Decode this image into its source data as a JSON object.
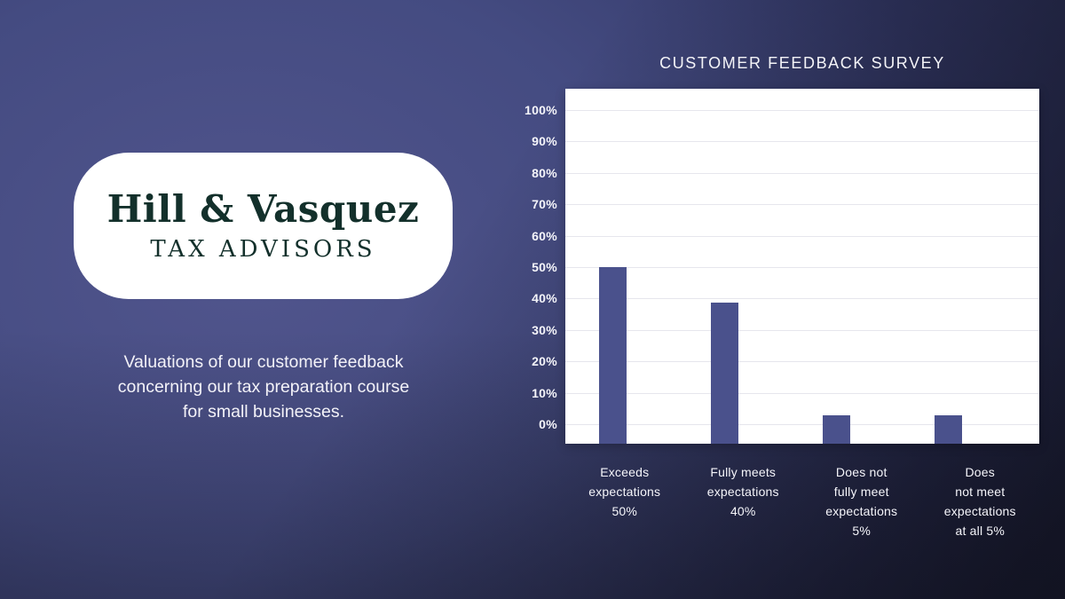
{
  "brand": {
    "name": "Hill & Vasquez",
    "subtitle": "TAX ADVISORS"
  },
  "intro": {
    "lines": [
      "Valuations of our customer feedback",
      "concerning our tax preparation course",
      "for small businesses."
    ]
  },
  "chart": {
    "title": "CUSTOMER FEEDBACK SURVEY"
  },
  "chart_data": {
    "type": "bar",
    "title": "CUSTOMER FEEDBACK SURVEY",
    "categories": [
      "Exceeds expectations",
      "Fully meets expectations",
      "Does not fully meet expectations",
      "Does not meet expectations at all"
    ],
    "values": [
      50,
      40,
      5,
      5
    ],
    "category_label_lines": [
      [
        "Exceeds",
        "expectations",
        "50%"
      ],
      [
        "Fully meets",
        "expectations",
        "40%"
      ],
      [
        "Does not",
        "fully meet",
        "expectations",
        "5%"
      ],
      [
        "Does",
        "not meet",
        "expectations",
        "at all 5%"
      ]
    ],
    "y_ticks": [
      "100%",
      "90%",
      "80%",
      "70%",
      "60%",
      "50%",
      "40%",
      "30%",
      "20%",
      "10%",
      "0%"
    ],
    "ylim": [
      0,
      100
    ],
    "grid": true,
    "legend": "none",
    "bar_color": "#4a518c",
    "plot_background": "#ffffff",
    "gridline_color": "#e6e6ed"
  },
  "colors": {
    "background_light": "#51558d",
    "background_dark": "#1d1d22",
    "card_background": "#ffffff",
    "card_text": "#13302b",
    "light_text": "#f5f5fa"
  }
}
